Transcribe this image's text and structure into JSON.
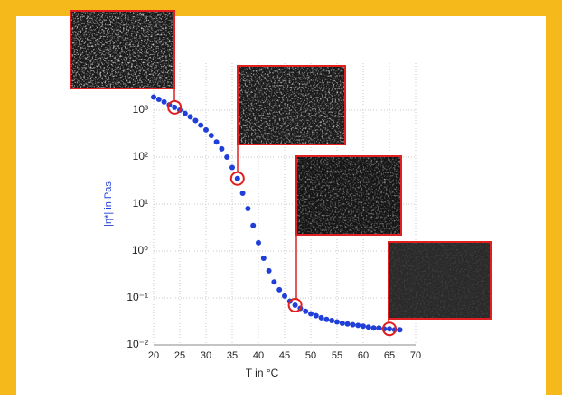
{
  "chart_data": {
    "type": "scatter",
    "xlabel": "T in °C",
    "ylabel": "|η*| in Pas",
    "x": [
      20,
      21,
      22,
      23,
      24,
      25,
      26,
      27,
      28,
      29,
      30,
      31,
      32,
      33,
      34,
      35,
      36,
      37,
      38,
      39,
      40,
      41,
      42,
      43,
      44,
      45,
      46,
      47,
      48,
      49,
      50,
      51,
      52,
      53,
      54,
      55,
      56,
      57,
      58,
      59,
      60,
      61,
      62,
      63,
      64,
      65,
      66,
      67
    ],
    "values": [
      1900,
      1700,
      1500,
      1300,
      1150,
      1000,
      850,
      720,
      600,
      480,
      380,
      290,
      210,
      150,
      100,
      60,
      35,
      17,
      8,
      3.5,
      1.5,
      0.7,
      0.38,
      0.22,
      0.15,
      0.11,
      0.085,
      0.07,
      0.06,
      0.052,
      0.046,
      0.042,
      0.038,
      0.035,
      0.033,
      0.031,
      0.029,
      0.028,
      0.027,
      0.026,
      0.025,
      0.024,
      0.023,
      0.023,
      0.022,
      0.022,
      0.021,
      0.021
    ],
    "color": "#1f3fd8",
    "highlight_indices": [
      4,
      16,
      27,
      45
    ],
    "highlight_color": "#e02020",
    "xlim": [
      20,
      70
    ],
    "xticks": [
      20,
      25,
      30,
      35,
      40,
      45,
      50,
      55,
      60,
      65,
      70
    ],
    "ylim": [
      0.01,
      10000
    ],
    "yscale": "log",
    "yticks": [
      {
        "value": 0.01,
        "label": "10⁻²"
      },
      {
        "value": 0.1,
        "label": "10⁻¹"
      },
      {
        "value": 1,
        "label": "10⁰"
      },
      {
        "value": 10,
        "label": "10¹"
      },
      {
        "value": 100,
        "label": "10²"
      },
      {
        "value": 1000,
        "label": "10³"
      }
    ],
    "grid": true
  }
}
